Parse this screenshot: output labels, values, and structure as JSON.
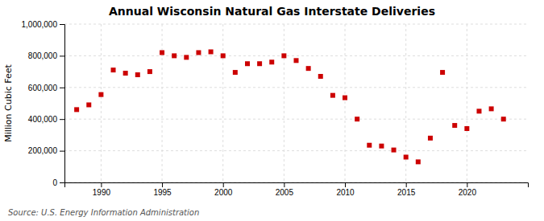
{
  "chart_data": {
    "type": "scatter",
    "title": "Annual Wisconsin Natural Gas Interstate Deliveries",
    "ylabel": "Million Cubic Feet",
    "source": "Source: U.S. Energy Information Administration",
    "x": [
      1988,
      1989,
      1990,
      1991,
      1992,
      1993,
      1994,
      1995,
      1996,
      1997,
      1998,
      1999,
      2000,
      2001,
      2002,
      2003,
      2004,
      2005,
      2006,
      2007,
      2008,
      2009,
      2010,
      2011,
      2012,
      2013,
      2014,
      2015,
      2016,
      2017,
      2018,
      2019,
      2020,
      2021,
      2022,
      2023
    ],
    "values": [
      460000,
      490000,
      555000,
      710000,
      690000,
      680000,
      700000,
      820000,
      800000,
      790000,
      820000,
      825000,
      800000,
      695000,
      750000,
      750000,
      760000,
      800000,
      770000,
      720000,
      670000,
      550000,
      535000,
      400000,
      235000,
      230000,
      205000,
      160000,
      130000,
      280000,
      695000,
      360000,
      340000,
      450000,
      465000,
      400000
    ],
    "color": "#cc0000",
    "marker": "square",
    "xlim": [
      1987,
      2025
    ],
    "xticks": [
      1990,
      1995,
      2000,
      2005,
      2010,
      2015,
      2020
    ],
    "ylim": [
      0,
      1000000
    ],
    "yticks": [
      0,
      {
        "value": 200000,
        "label": "200,000"
      },
      {
        "value": 400000,
        "label": "400,000"
      },
      {
        "value": 600000,
        "label": "600,000"
      },
      {
        "value": 800000,
        "label": "800,000"
      },
      {
        "value": 1000000,
        "label": "1,000,000"
      }
    ],
    "grid": true
  }
}
